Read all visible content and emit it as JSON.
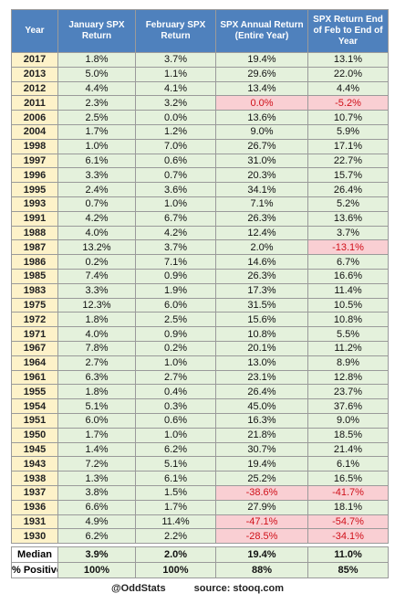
{
  "table": {
    "headers": [
      "Year",
      "January SPX Return",
      "February SPX Return",
      "SPX Annual Return (Entire Year)",
      "SPX Return End of Feb to End of Year"
    ],
    "rows": [
      [
        "2017",
        "1.8%",
        "3.7%",
        "19.4%",
        "13.1%"
      ],
      [
        "2013",
        "5.0%",
        "1.1%",
        "29.6%",
        "22.0%"
      ],
      [
        "2012",
        "4.4%",
        "4.1%",
        "13.4%",
        "4.4%"
      ],
      [
        "2011",
        "2.3%",
        "3.2%",
        "0.0%",
        "-5.2%"
      ],
      [
        "2006",
        "2.5%",
        "0.0%",
        "13.6%",
        "10.7%"
      ],
      [
        "2004",
        "1.7%",
        "1.2%",
        "9.0%",
        "5.9%"
      ],
      [
        "1998",
        "1.0%",
        "7.0%",
        "26.7%",
        "17.1%"
      ],
      [
        "1997",
        "6.1%",
        "0.6%",
        "31.0%",
        "22.7%"
      ],
      [
        "1996",
        "3.3%",
        "0.7%",
        "20.3%",
        "15.7%"
      ],
      [
        "1995",
        "2.4%",
        "3.6%",
        "34.1%",
        "26.4%"
      ],
      [
        "1993",
        "0.7%",
        "1.0%",
        "7.1%",
        "5.2%"
      ],
      [
        "1991",
        "4.2%",
        "6.7%",
        "26.3%",
        "13.6%"
      ],
      [
        "1988",
        "4.0%",
        "4.2%",
        "12.4%",
        "3.7%"
      ],
      [
        "1987",
        "13.2%",
        "3.7%",
        "2.0%",
        "-13.1%"
      ],
      [
        "1986",
        "0.2%",
        "7.1%",
        "14.6%",
        "6.7%"
      ],
      [
        "1985",
        "7.4%",
        "0.9%",
        "26.3%",
        "16.6%"
      ],
      [
        "1983",
        "3.3%",
        "1.9%",
        "17.3%",
        "11.4%"
      ],
      [
        "1975",
        "12.3%",
        "6.0%",
        "31.5%",
        "10.5%"
      ],
      [
        "1972",
        "1.8%",
        "2.5%",
        "15.6%",
        "10.8%"
      ],
      [
        "1971",
        "4.0%",
        "0.9%",
        "10.8%",
        "5.5%"
      ],
      [
        "1967",
        "7.8%",
        "0.2%",
        "20.1%",
        "11.2%"
      ],
      [
        "1964",
        "2.7%",
        "1.0%",
        "13.0%",
        "8.9%"
      ],
      [
        "1961",
        "6.3%",
        "2.7%",
        "23.1%",
        "12.8%"
      ],
      [
        "1955",
        "1.8%",
        "0.4%",
        "26.4%",
        "23.7%"
      ],
      [
        "1954",
        "5.1%",
        "0.3%",
        "45.0%",
        "37.6%"
      ],
      [
        "1951",
        "6.0%",
        "0.6%",
        "16.3%",
        "9.0%"
      ],
      [
        "1950",
        "1.7%",
        "1.0%",
        "21.8%",
        "18.5%"
      ],
      [
        "1945",
        "1.4%",
        "6.2%",
        "30.7%",
        "21.4%"
      ],
      [
        "1943",
        "7.2%",
        "5.1%",
        "19.4%",
        "6.1%"
      ],
      [
        "1938",
        "1.3%",
        "6.1%",
        "25.2%",
        "16.5%"
      ],
      [
        "1937",
        "3.8%",
        "1.5%",
        "-38.6%",
        "-41.7%"
      ],
      [
        "1936",
        "6.6%",
        "1.7%",
        "27.9%",
        "18.1%"
      ],
      [
        "1931",
        "4.9%",
        "11.4%",
        "-47.1%",
        "-54.7%"
      ],
      [
        "1930",
        "6.2%",
        "2.2%",
        "-28.5%",
        "-34.1%"
      ]
    ],
    "summary": [
      [
        "Median",
        "3.9%",
        "2.0%",
        "19.4%",
        "11.0%"
      ],
      [
        "% Positive",
        "100%",
        "100%",
        "88%",
        "85%"
      ]
    ]
  },
  "footer": {
    "handle": "@OddStats",
    "source": "source: stooq.com"
  }
}
